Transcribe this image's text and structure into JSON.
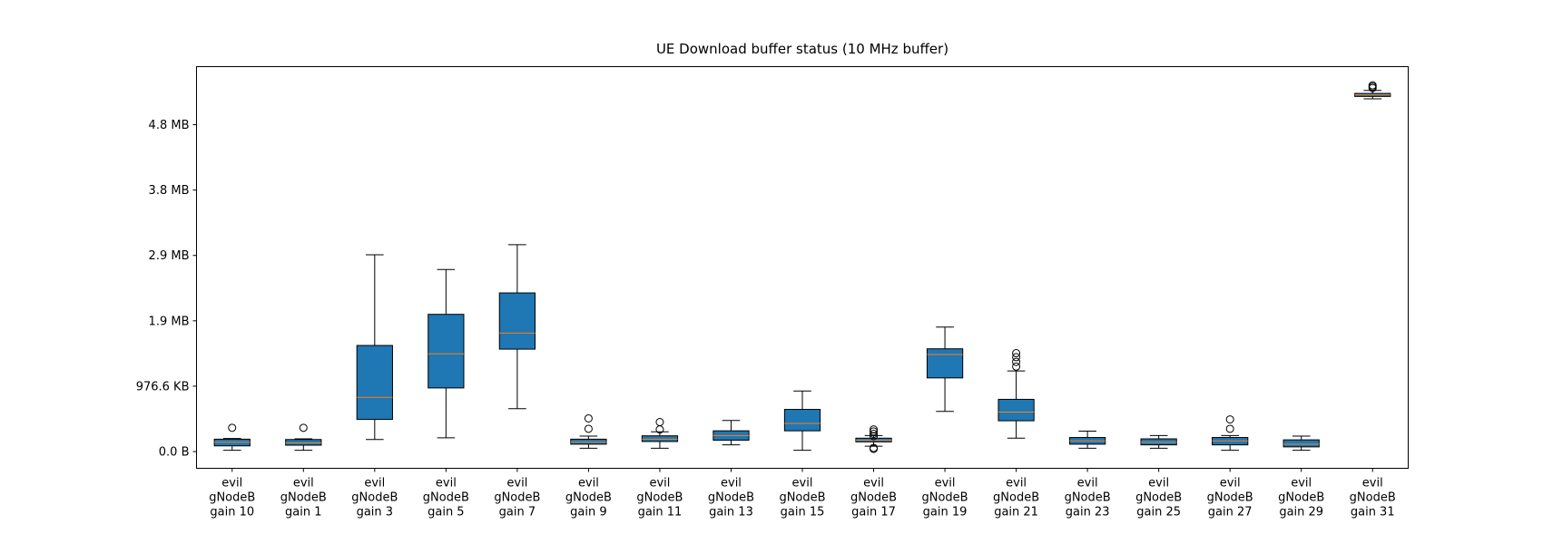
{
  "chart_data": {
    "type": "box",
    "title": "UE Download buffer status (10 MHz buffer)",
    "xlabel": "",
    "ylabel": "",
    "ylim": [
      -250,
      5750
    ],
    "y_ticks": [
      {
        "value": 0,
        "label": "0.0 B"
      },
      {
        "value": 976.6,
        "label": "976.6 KB"
      },
      {
        "value": 1953.1,
        "label": "1.9 MB"
      },
      {
        "value": 2929.7,
        "label": "2.9 MB"
      },
      {
        "value": 3906.2,
        "label": "3.8 MB"
      },
      {
        "value": 4882.8,
        "label": "4.8 MB"
      }
    ],
    "y_unit": "KB",
    "box_color": "#1f77b4",
    "median_color": "#ff7f0e",
    "categories": [
      "evil\ngNodeB\ngain 10",
      "evil\ngNodeB\ngain 1",
      "evil\ngNodeB\ngain 3",
      "evil\ngNodeB\ngain 5",
      "evil\ngNodeB\ngain 7",
      "evil\ngNodeB\ngain 9",
      "evil\ngNodeB\ngain 11",
      "evil\ngNodeB\ngain 13",
      "evil\ngNodeB\ngain 15",
      "evil\ngNodeB\ngain 17",
      "evil\ngNodeB\ngain 19",
      "evil\ngNodeB\ngain 21",
      "evil\ngNodeB\ngain 23",
      "evil\ngNodeB\ngain 25",
      "evil\ngNodeB\ngain 27",
      "evil\ngNodeB\ngain 29",
      "evil\ngNodeB\ngain 31"
    ],
    "boxes": [
      {
        "whisker_low": 20,
        "q1": 85,
        "median": 140,
        "q3": 185,
        "whisker_high": 195,
        "outliers": [
          355
        ]
      },
      {
        "whisker_low": 20,
        "q1": 95,
        "median": 130,
        "q3": 180,
        "whisker_high": 190,
        "outliers": [
          355
        ]
      },
      {
        "whisker_low": 180,
        "q1": 480,
        "median": 810,
        "q3": 1585,
        "whisker_high": 2940,
        "outliers": []
      },
      {
        "whisker_low": 205,
        "q1": 950,
        "median": 1460,
        "q3": 2050,
        "whisker_high": 2720,
        "outliers": []
      },
      {
        "whisker_low": 640,
        "q1": 1530,
        "median": 1770,
        "q3": 2370,
        "whisker_high": 3090,
        "outliers": []
      },
      {
        "whisker_low": 50,
        "q1": 110,
        "median": 140,
        "q3": 185,
        "whisker_high": 230,
        "outliers": [
          340,
          495
        ]
      },
      {
        "whisker_low": 50,
        "q1": 150,
        "median": 185,
        "q3": 235,
        "whisker_high": 295,
        "outliers": [
          330,
          440
        ]
      },
      {
        "whisker_low": 100,
        "q1": 170,
        "median": 240,
        "q3": 310,
        "whisker_high": 465,
        "outliers": []
      },
      {
        "whisker_low": 20,
        "q1": 310,
        "median": 420,
        "q3": 630,
        "whisker_high": 905,
        "outliers": []
      },
      {
        "whisker_low": 80,
        "q1": 145,
        "median": 170,
        "q3": 200,
        "whisker_high": 240,
        "outliers": [
          40,
          55,
          230,
          265,
          300,
          330
        ]
      },
      {
        "whisker_low": 600,
        "q1": 1100,
        "median": 1450,
        "q3": 1535,
        "whisker_high": 1860,
        "outliers": []
      },
      {
        "whisker_low": 200,
        "q1": 460,
        "median": 590,
        "q3": 780,
        "whisker_high": 1205,
        "outliers": [
          1270,
          1340,
          1410,
          1470
        ]
      },
      {
        "whisker_low": 50,
        "q1": 110,
        "median": 160,
        "q3": 210,
        "whisker_high": 305,
        "outliers": []
      },
      {
        "whisker_low": 50,
        "q1": 100,
        "median": 140,
        "q3": 190,
        "whisker_high": 240,
        "outliers": []
      },
      {
        "whisker_low": 20,
        "q1": 100,
        "median": 160,
        "q3": 210,
        "whisker_high": 240,
        "outliers": [
          340,
          480
        ]
      },
      {
        "whisker_low": 20,
        "q1": 70,
        "median": 110,
        "q3": 175,
        "whisker_high": 230,
        "outliers": []
      },
      {
        "whisker_low": 5270,
        "q1": 5305,
        "median": 5330,
        "q3": 5350,
        "whisker_high": 5395,
        "outliers": [
          5430,
          5450,
          5470
        ]
      }
    ]
  }
}
